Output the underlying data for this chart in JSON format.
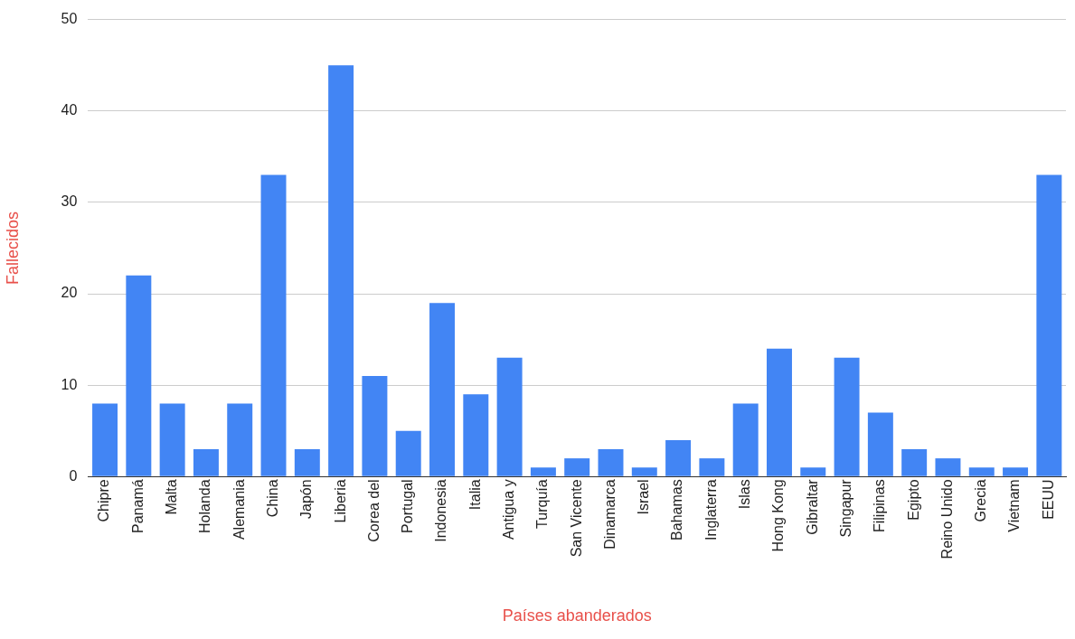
{
  "chart_data": {
    "type": "bar",
    "xlabel": "Países abanderados",
    "ylabel": "Fallecidos",
    "categories": [
      "Chipre",
      "Panamá",
      "Malta",
      "Holanda",
      "Alemania",
      "China",
      "Japón",
      "Liberia",
      "Corea del",
      "Portugal",
      "Indonesia",
      "Italia",
      "Antigua y",
      "Turquía",
      "San Vicente",
      "Dinamarca",
      "Israel",
      "Bahamas",
      "Inglaterra",
      "Islas",
      "Hong Kong",
      "Gibraltar",
      "Singapur",
      "Filipinas",
      "Egipto",
      "Reino Unido",
      "Grecia",
      "Vietnam",
      "EEUU"
    ],
    "values": [
      8,
      22,
      8,
      3,
      8,
      33,
      3,
      45,
      11,
      5,
      19,
      9,
      13,
      1,
      2,
      3,
      1,
      4,
      2,
      8,
      14,
      1,
      13,
      7,
      3,
      2,
      1,
      1,
      33
    ],
    "color": "#4285f4",
    "ylim": [
      0,
      50
    ],
    "yticks": [
      0,
      10,
      20,
      30,
      40,
      50
    ],
    "grid": "y",
    "legend": false
  }
}
